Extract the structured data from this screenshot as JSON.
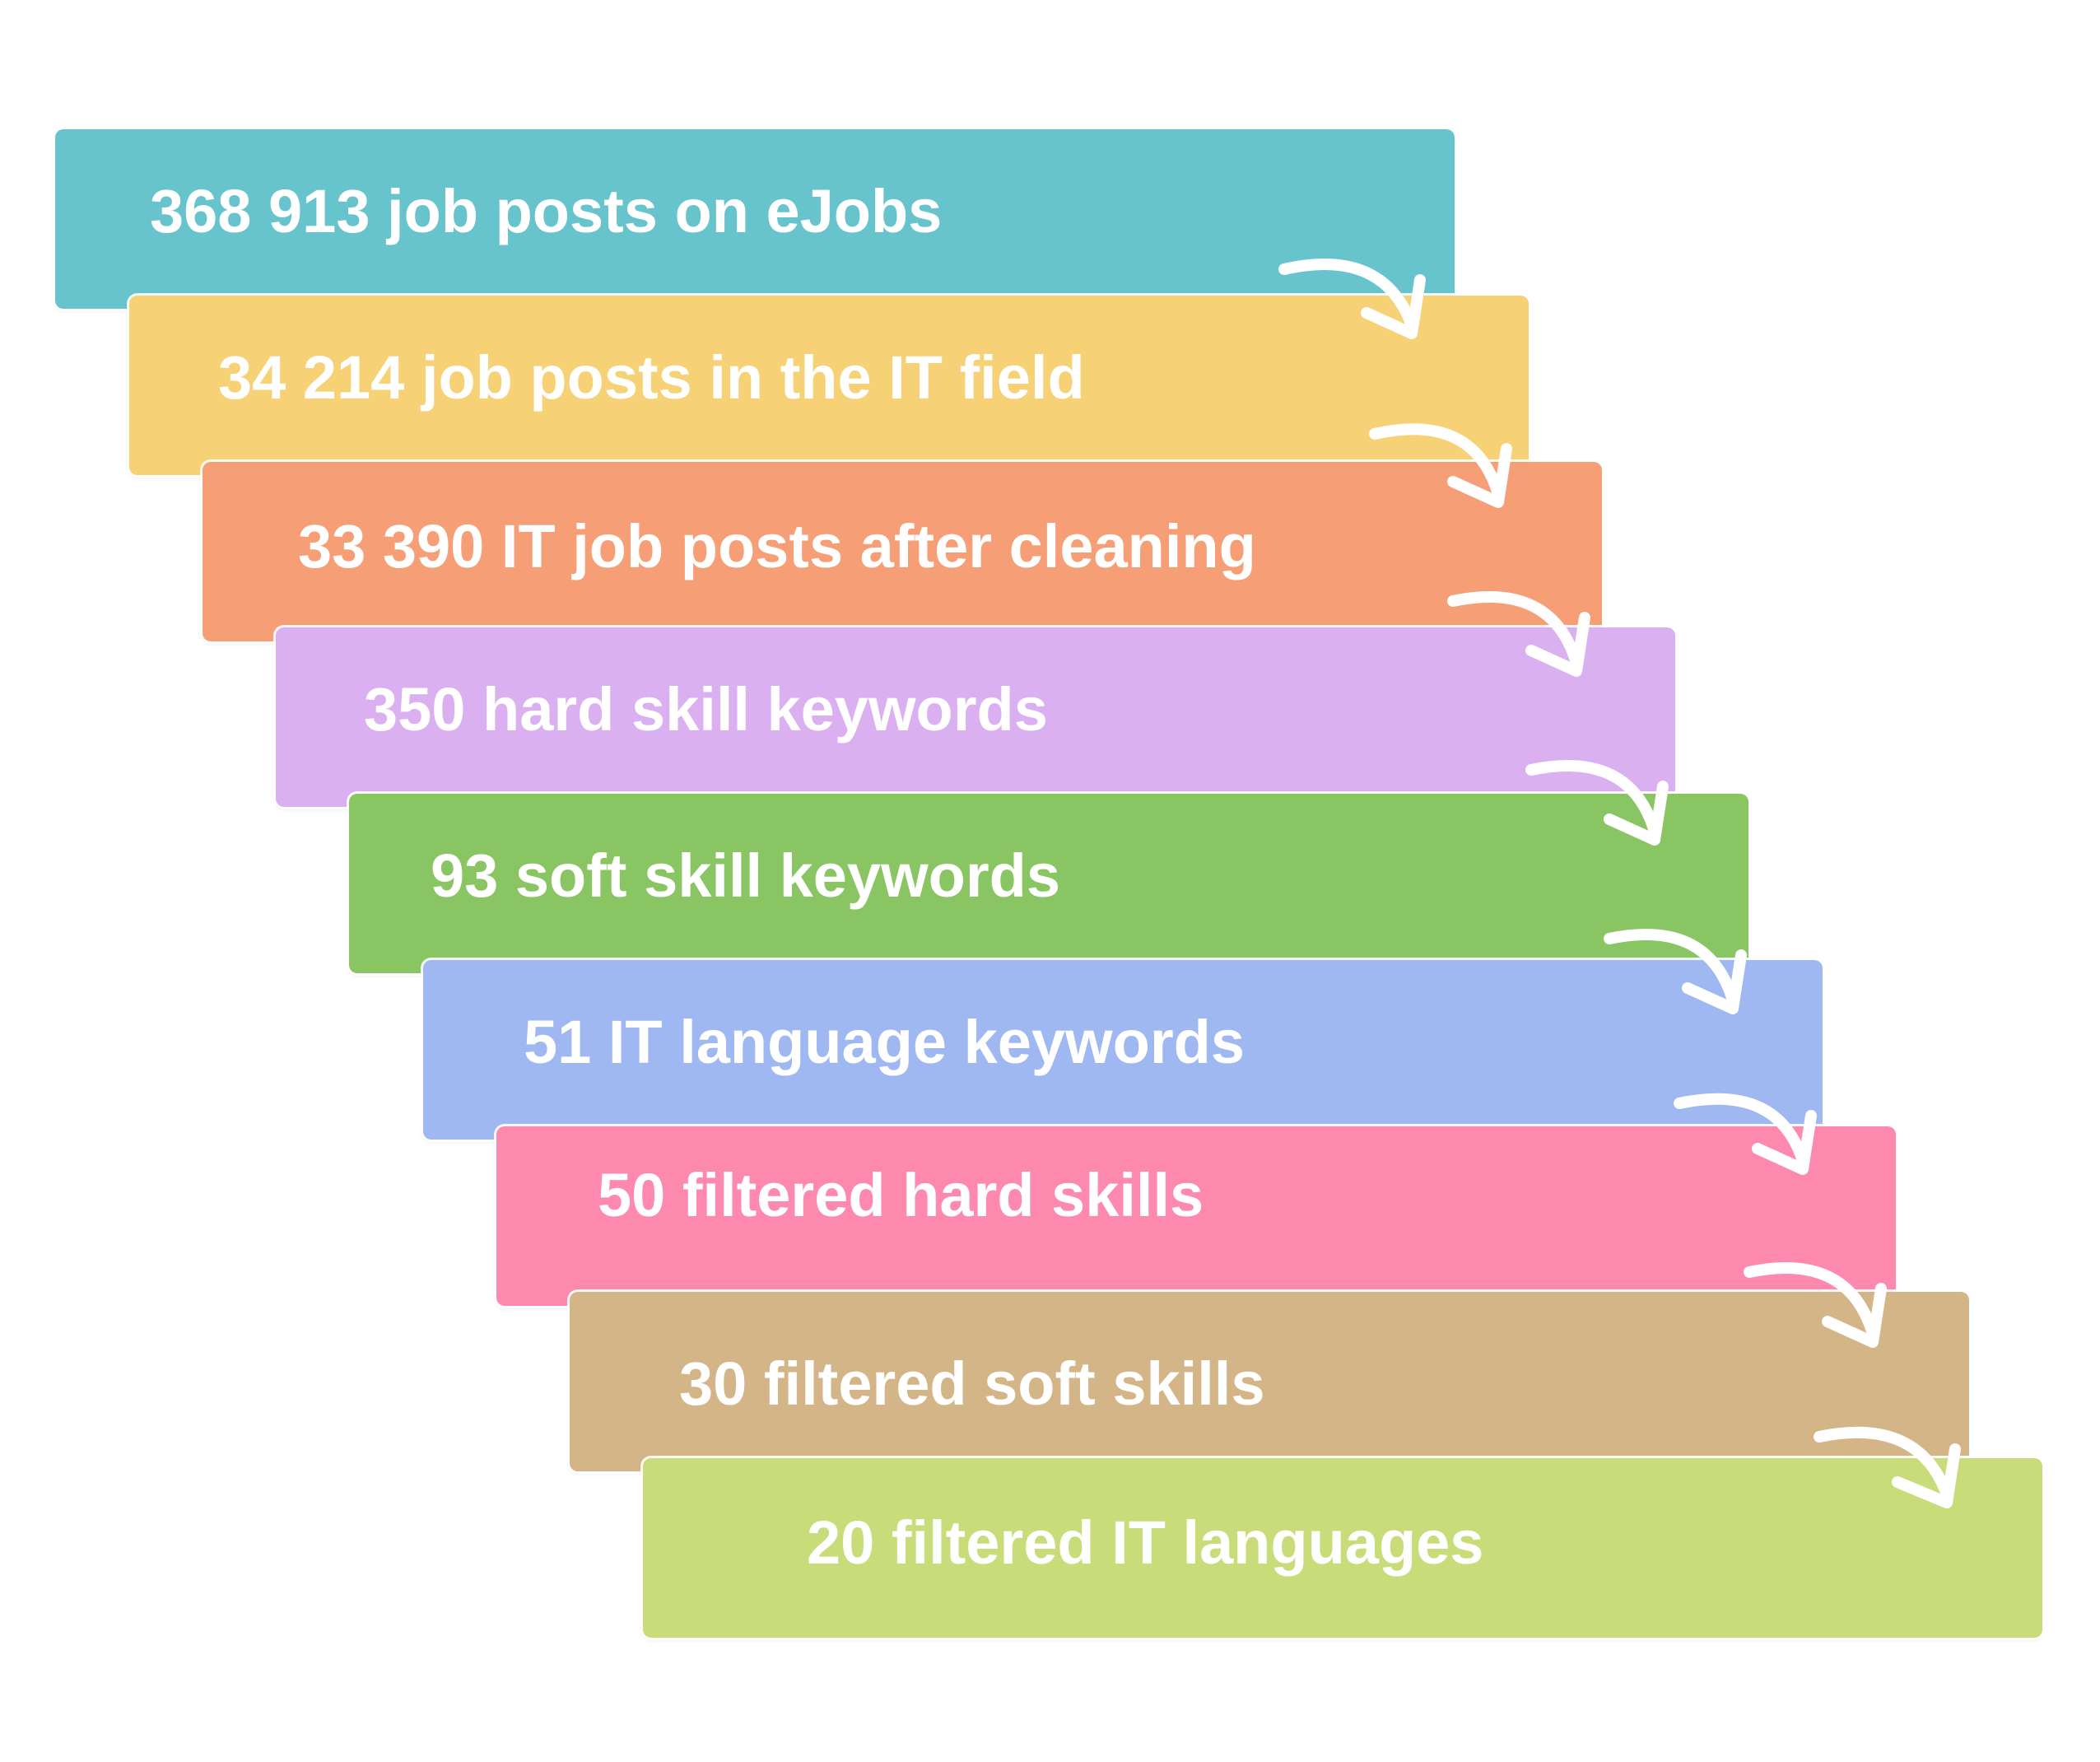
{
  "steps": [
    {
      "label": "368 913 job posts on eJobs",
      "color": "#68c4cc"
    },
    {
      "label": "34 214 job posts in the IT field",
      "color": "#f6d176"
    },
    {
      "label": "33 390 IT job posts after cleaning",
      "color": "#f69f77"
    },
    {
      "label": "350 hard skill keywords",
      "color": "#dbb0f1"
    },
    {
      "label": "93 soft skill keywords",
      "color": "#8ac563"
    },
    {
      "label": "51 IT language keywords",
      "color": "#9fb8f2"
    },
    {
      "label": "50 filtered hard skills",
      "color": "#fe89ae"
    },
    {
      "label": "30 filtered soft skills",
      "color": "#d4b588"
    },
    {
      "label": "20 filtered IT languages",
      "color": "#c9dc7a"
    }
  ],
  "arrow_color": "#ffffff",
  "icons": {
    "connector": "curved-arrow-icon"
  }
}
